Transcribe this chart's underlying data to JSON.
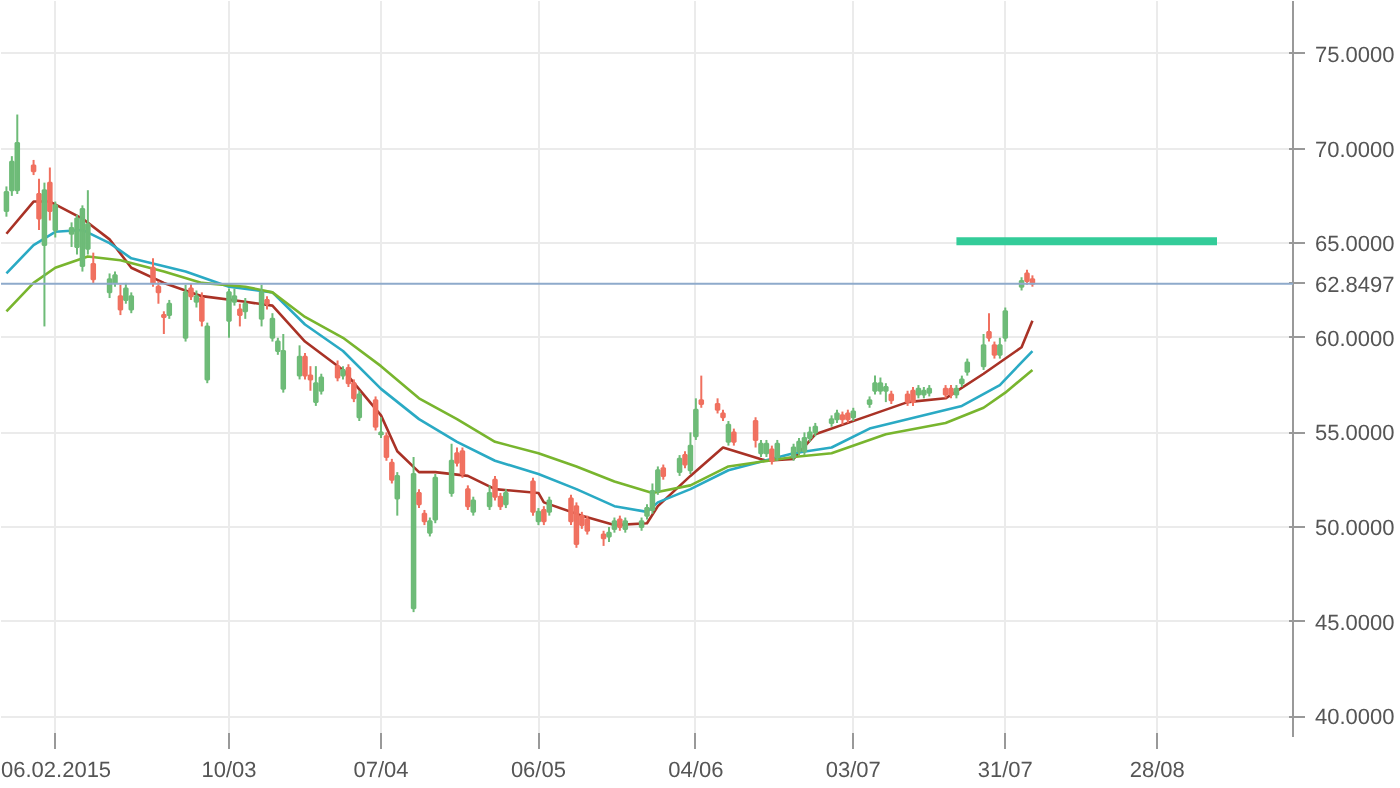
{
  "chart_data": {
    "type": "candlestick",
    "x": [
      "2015-01-28",
      "2015-01-29",
      "2015-01-30",
      "2015-02-02",
      "2015-02-03",
      "2015-02-04",
      "2015-02-05",
      "2015-02-06",
      "2015-02-09",
      "2015-02-10",
      "2015-02-11",
      "2015-02-12",
      "2015-02-13",
      "2015-02-16",
      "2015-02-17",
      "2015-02-18",
      "2015-02-19",
      "2015-02-20",
      "2015-02-24",
      "2015-02-25",
      "2015-02-26",
      "2015-02-27",
      "2015-03-02",
      "2015-03-03",
      "2015-03-04",
      "2015-03-05",
      "2015-03-06",
      "2015-03-10",
      "2015-03-11",
      "2015-03-12",
      "2015-03-13",
      "2015-03-16",
      "2015-03-17",
      "2015-03-18",
      "2015-03-19",
      "2015-03-20",
      "2015-03-23",
      "2015-03-24",
      "2015-03-25",
      "2015-03-26",
      "2015-03-27",
      "2015-03-30",
      "2015-03-31",
      "2015-04-01",
      "2015-04-02",
      "2015-04-03",
      "2015-04-06",
      "2015-04-07",
      "2015-04-08",
      "2015-04-09",
      "2015-04-10",
      "2015-04-13",
      "2015-04-14",
      "2015-04-15",
      "2015-04-16",
      "2015-04-17",
      "2015-04-20",
      "2015-04-21",
      "2015-04-22",
      "2015-04-23",
      "2015-04-24",
      "2015-04-27",
      "2015-04-28",
      "2015-04-29",
      "2015-04-30",
      "2015-05-05",
      "2015-05-06",
      "2015-05-07",
      "2015-05-08",
      "2015-05-12",
      "2015-05-13",
      "2015-05-14",
      "2015-05-15",
      "2015-05-18",
      "2015-05-19",
      "2015-05-20",
      "2015-05-21",
      "2015-05-22",
      "2015-05-25",
      "2015-05-26",
      "2015-05-27",
      "2015-05-28",
      "2015-05-29",
      "2015-06-01",
      "2015-06-02",
      "2015-06-03",
      "2015-06-04",
      "2015-06-05",
      "2015-06-08",
      "2015-06-09",
      "2015-06-10",
      "2015-06-11",
      "2015-06-15",
      "2015-06-16",
      "2015-06-17",
      "2015-06-18",
      "2015-06-19",
      "2015-06-22",
      "2015-06-23",
      "2015-06-24",
      "2015-06-25",
      "2015-06-26",
      "2015-06-29",
      "2015-06-30",
      "2015-07-01",
      "2015-07-02",
      "2015-07-03",
      "2015-07-06",
      "2015-07-07",
      "2015-07-08",
      "2015-07-09",
      "2015-07-10",
      "2015-07-13",
      "2015-07-14",
      "2015-07-15",
      "2015-07-16",
      "2015-07-17",
      "2015-07-20",
      "2015-07-21",
      "2015-07-22",
      "2015-07-23",
      "2015-07-24",
      "2015-07-27",
      "2015-07-28",
      "2015-07-29",
      "2015-07-30",
      "2015-07-31",
      "2015-08-03",
      "2015-08-04",
      "2015-08-05"
    ],
    "ohlc": [
      [
        66.7,
        68.0,
        66.4,
        67.7
      ],
      [
        67.8,
        69.6,
        67.5,
        69.3
      ],
      [
        67.8,
        71.8,
        67.6,
        70.3
      ],
      [
        69.1,
        69.4,
        68.6,
        68.8
      ],
      [
        67.6,
        68.4,
        65.7,
        66.3
      ],
      [
        64.9,
        68.2,
        60.6,
        67.8
      ],
      [
        68.2,
        69.0,
        66.2,
        66.7
      ],
      [
        65.7,
        67.2,
        65.3,
        67.0
      ],
      [
        65.5,
        66.1,
        64.8,
        65.8
      ],
      [
        64.8,
        66.5,
        64.4,
        66.3
      ],
      [
        63.8,
        67.0,
        63.5,
        66.8
      ],
      [
        64.7,
        67.8,
        64.4,
        66.0
      ],
      [
        63.9,
        64.5,
        62.9,
        63.1
      ],
      [
        62.4,
        63.4,
        62.1,
        63.1
      ],
      [
        62.9,
        63.5,
        62.7,
        63.3
      ],
      [
        62.2,
        62.8,
        61.2,
        61.5
      ],
      [
        62.0,
        62.9,
        61.8,
        62.6
      ],
      [
        61.5,
        62.4,
        61.3,
        62.2
      ],
      [
        63.7,
        64.2,
        62.7,
        62.9
      ],
      [
        62.7,
        63.0,
        61.8,
        62.4
      ],
      [
        61.2,
        61.4,
        60.2,
        61.1
      ],
      [
        61.2,
        62.0,
        61.0,
        61.8
      ],
      [
        60.0,
        62.8,
        59.8,
        62.4
      ],
      [
        62.6,
        62.9,
        62.0,
        62.2
      ],
      [
        61.9,
        62.5,
        61.6,
        62.2
      ],
      [
        62.1,
        62.4,
        60.6,
        60.9
      ],
      [
        57.8,
        60.8,
        57.6,
        60.6
      ],
      [
        60.9,
        62.6,
        60.0,
        62.4
      ],
      [
        61.9,
        62.6,
        61.7,
        62.2
      ],
      [
        61.5,
        61.8,
        60.6,
        61.2
      ],
      [
        61.4,
        62.1,
        61.0,
        61.8
      ],
      [
        61.0,
        62.8,
        60.6,
        62.4
      ],
      [
        62.0,
        62.2,
        61.5,
        61.8
      ],
      [
        60.0,
        61.3,
        59.8,
        61.0
      ],
      [
        59.3,
        60.0,
        59.1,
        59.8
      ],
      [
        57.3,
        60.2,
        57.1,
        59.3
      ],
      [
        58.0,
        59.6,
        57.8,
        59.0
      ],
      [
        59.0,
        59.2,
        57.8,
        58.0
      ],
      [
        58.0,
        58.5,
        57.2,
        57.8
      ],
      [
        56.6,
        58.5,
        56.4,
        57.6
      ],
      [
        57.2,
        58.1,
        57.0,
        57.9
      ],
      [
        58.5,
        58.8,
        57.7,
        57.9
      ],
      [
        58.0,
        58.5,
        57.8,
        58.3
      ],
      [
        58.4,
        58.6,
        57.4,
        57.6
      ],
      [
        57.6,
        57.8,
        56.6,
        56.8
      ],
      [
        55.8,
        57.2,
        55.6,
        57.0
      ],
      [
        56.7,
        56.9,
        55.1,
        55.3
      ],
      [
        54.9,
        55.8,
        54.7,
        55.0
      ],
      [
        54.8,
        55.0,
        53.5,
        53.7
      ],
      [
        53.4,
        53.6,
        52.3,
        52.5
      ],
      [
        51.5,
        52.9,
        50.6,
        52.7
      ],
      [
        45.7,
        53.7,
        45.5,
        52.8
      ],
      [
        51.8,
        52.0,
        51.0,
        51.2
      ],
      [
        50.7,
        50.9,
        50.1,
        50.3
      ],
      [
        49.7,
        50.5,
        49.5,
        50.3
      ],
      [
        50.4,
        52.8,
        50.2,
        52.6
      ],
      [
        51.8,
        54.4,
        51.6,
        53.5
      ],
      [
        53.9,
        54.2,
        53.2,
        53.4
      ],
      [
        54.0,
        54.2,
        52.6,
        52.8
      ],
      [
        52.0,
        52.2,
        50.9,
        51.1
      ],
      [
        50.8,
        51.6,
        50.6,
        51.4
      ],
      [
        51.1,
        52.2,
        50.9,
        51.8
      ],
      [
        52.5,
        52.7,
        51.4,
        51.6
      ],
      [
        51.6,
        51.8,
        50.9,
        51.1
      ],
      [
        51.2,
        52.0,
        51.0,
        51.8
      ],
      [
        52.4,
        52.6,
        50.6,
        50.8
      ],
      [
        50.3,
        51.0,
        50.1,
        50.8
      ],
      [
        50.9,
        51.1,
        50.1,
        50.3
      ],
      [
        50.8,
        51.6,
        50.6,
        51.4
      ],
      [
        51.5,
        51.7,
        50.1,
        50.3
      ],
      [
        51.1,
        51.3,
        48.9,
        49.1
      ],
      [
        50.6,
        50.8,
        49.9,
        50.1
      ],
      [
        50.4,
        50.6,
        49.6,
        49.8
      ],
      [
        49.6,
        49.8,
        49.0,
        49.4
      ],
      [
        49.5,
        50.0,
        49.2,
        49.7
      ],
      [
        49.9,
        50.5,
        49.7,
        50.3
      ],
      [
        50.4,
        50.6,
        49.8,
        50.0
      ],
      [
        49.9,
        50.5,
        49.7,
        50.3
      ],
      [
        50.0,
        50.5,
        49.8,
        50.3
      ],
      [
        50.6,
        51.2,
        50.4,
        51.0
      ],
      [
        50.9,
        52.3,
        50.7,
        51.9
      ],
      [
        51.9,
        53.2,
        51.7,
        53.0
      ],
      [
        53.1,
        53.3,
        52.5,
        52.7
      ],
      [
        52.9,
        53.8,
        52.7,
        53.6
      ],
      [
        53.8,
        54.0,
        53.1,
        53.3
      ],
      [
        53.0,
        55.0,
        52.8,
        54.3
      ],
      [
        54.8,
        56.8,
        54.6,
        56.2
      ],
      [
        56.7,
        58.0,
        56.3,
        56.5
      ],
      [
        56.5,
        56.8,
        56.0,
        56.2
      ],
      [
        56.0,
        56.2,
        55.6,
        55.8
      ],
      [
        54.5,
        55.6,
        54.3,
        55.4
      ],
      [
        55.0,
        55.2,
        54.3,
        54.5
      ],
      [
        55.6,
        55.8,
        54.2,
        54.6
      ],
      [
        53.9,
        54.6,
        53.7,
        54.4
      ],
      [
        53.9,
        54.6,
        53.7,
        54.4
      ],
      [
        54.1,
        54.3,
        53.3,
        53.5
      ],
      [
        53.7,
        54.6,
        53.5,
        54.4
      ],
      [
        53.7,
        54.4,
        53.5,
        54.2
      ],
      [
        54.0,
        54.7,
        53.8,
        54.5
      ],
      [
        54.0,
        55.0,
        53.8,
        54.7
      ],
      [
        54.7,
        55.3,
        54.5,
        55.0
      ],
      [
        55.0,
        55.5,
        54.8,
        55.3
      ],
      [
        55.5,
        55.9,
        55.3,
        55.7
      ],
      [
        55.7,
        56.2,
        55.5,
        56.0
      ],
      [
        55.9,
        56.1,
        55.4,
        55.7
      ],
      [
        56.0,
        56.2,
        55.5,
        55.7
      ],
      [
        55.8,
        56.3,
        55.6,
        56.1
      ],
      [
        56.5,
        56.9,
        56.3,
        56.7
      ],
      [
        57.2,
        58.0,
        57.0,
        57.6
      ],
      [
        57.2,
        57.9,
        57.0,
        57.6
      ],
      [
        57.2,
        57.6,
        56.6,
        57.4
      ],
      [
        57.0,
        57.2,
        56.5,
        56.7
      ],
      [
        57.0,
        57.2,
        56.4,
        56.6
      ],
      [
        57.2,
        57.4,
        56.4,
        56.6
      ],
      [
        57.0,
        57.5,
        56.8,
        57.3
      ],
      [
        57.0,
        57.4,
        56.8,
        57.2
      ],
      [
        57.1,
        57.5,
        56.9,
        57.3
      ],
      [
        57.3,
        57.5,
        56.8,
        57.0
      ],
      [
        57.3,
        57.5,
        56.8,
        57.0
      ],
      [
        57.0,
        57.5,
        56.8,
        57.3
      ],
      [
        57.6,
        58.0,
        57.4,
        57.8
      ],
      [
        58.2,
        58.9,
        58.0,
        58.7
      ],
      [
        58.5,
        60.2,
        58.3,
        59.6
      ],
      [
        60.3,
        61.3,
        59.8,
        60.0
      ],
      [
        59.6,
        59.8,
        58.9,
        59.1
      ],
      [
        59.1,
        60.0,
        58.9,
        59.6
      ],
      [
        60.0,
        61.6,
        59.8,
        61.4
      ],
      [
        62.7,
        63.2,
        62.5,
        63.0
      ],
      [
        63.4,
        63.6,
        62.8,
        63.0
      ],
      [
        63.1,
        63.3,
        62.7,
        62.85
      ]
    ],
    "colors": [
      "#6dbb77",
      "#6dbb77",
      "#6dbb77",
      "#f0705f",
      "#f0705f",
      "#6dbb77",
      "#f0705f",
      "#6dbb77",
      "#6dbb77",
      "#6dbb77",
      "#6dbb77",
      "#6dbb77",
      "#f0705f",
      "#6dbb77",
      "#6dbb77",
      "#f0705f",
      "#6dbb77",
      "#6dbb77",
      "#f0705f",
      "#f0705f",
      "#f0705f",
      "#6dbb77",
      "#6dbb77",
      "#f0705f",
      "#6dbb77",
      "#f0705f",
      "#6dbb77",
      "#6dbb77",
      "#6dbb77",
      "#f0705f",
      "#6dbb77",
      "#6dbb77",
      "#f0705f",
      "#6dbb77",
      "#6dbb77",
      "#6dbb77",
      "#6dbb77",
      "#f0705f",
      "#f0705f",
      "#6dbb77",
      "#6dbb77",
      "#f0705f",
      "#6dbb77",
      "#f0705f",
      "#f0705f",
      "#6dbb77",
      "#f0705f",
      "#6dbb77",
      "#f0705f",
      "#f0705f",
      "#6dbb77",
      "#6dbb77",
      "#f0705f",
      "#f0705f",
      "#6dbb77",
      "#6dbb77",
      "#6dbb77",
      "#f0705f",
      "#f0705f",
      "#f0705f",
      "#6dbb77",
      "#6dbb77",
      "#f0705f",
      "#f0705f",
      "#6dbb77",
      "#f0705f",
      "#6dbb77",
      "#f0705f",
      "#6dbb77",
      "#f0705f",
      "#f0705f",
      "#f0705f",
      "#f0705f",
      "#f0705f",
      "#6dbb77",
      "#6dbb77",
      "#f0705f",
      "#6dbb77",
      "#6dbb77",
      "#6dbb77",
      "#6dbb77",
      "#6dbb77",
      "#f0705f",
      "#6dbb77",
      "#f0705f",
      "#6dbb77",
      "#6dbb77",
      "#f0705f",
      "#f0705f",
      "#f0705f",
      "#6dbb77",
      "#f0705f",
      "#f0705f",
      "#6dbb77",
      "#6dbb77",
      "#f0705f",
      "#6dbb77",
      "#6dbb77",
      "#6dbb77",
      "#6dbb77",
      "#6dbb77",
      "#6dbb77",
      "#6dbb77",
      "#6dbb77",
      "#f0705f",
      "#f0705f",
      "#6dbb77",
      "#6dbb77",
      "#6dbb77",
      "#6dbb77",
      "#6dbb77",
      "#f0705f",
      "#f0705f",
      "#f0705f",
      "#6dbb77",
      "#6dbb77",
      "#6dbb77",
      "#f0705f",
      "#f0705f",
      "#6dbb77",
      "#6dbb77",
      "#6dbb77",
      "#6dbb77",
      "#f0705f",
      "#f0705f",
      "#6dbb77",
      "#6dbb77",
      "#6dbb77",
      "#f0705f",
      "#f0705f"
    ],
    "series": [
      {
        "type": "line",
        "color": "#a93226",
        "x": [
          "2015-01-28",
          "2015-02-02",
          "2015-02-05",
          "2015-02-11",
          "2015-02-16",
          "2015-02-20",
          "2015-02-26",
          "2015-03-05",
          "2015-03-13",
          "2015-03-18",
          "2015-03-24",
          "2015-03-31",
          "2015-04-07",
          "2015-04-10",
          "2015-04-14",
          "2015-04-17",
          "2015-04-23",
          "2015-04-28",
          "2015-05-06",
          "2015-05-07",
          "2015-05-14",
          "2015-05-20",
          "2015-05-26",
          "2015-05-28",
          "2015-06-03",
          "2015-06-09",
          "2015-06-17",
          "2015-06-22",
          "2015-06-26",
          "2015-07-06",
          "2015-07-13",
          "2015-07-20",
          "2015-07-27",
          "2015-08-03",
          "2015-08-05"
        ],
        "values": [
          65.5,
          67.2,
          67.2,
          66.3,
          65.2,
          63.7,
          62.9,
          62.2,
          61.9,
          61.7,
          59.8,
          58.3,
          55.9,
          54.0,
          52.9,
          52.9,
          52.7,
          52.0,
          51.8,
          51.3,
          50.6,
          50.1,
          50.2,
          51.1,
          52.7,
          54.2,
          53.5,
          53.6,
          54.9,
          55.9,
          56.6,
          56.8,
          58.1,
          59.5,
          60.9
        ]
      },
      {
        "type": "line",
        "color": "#2aaac4",
        "x": [
          "2015-01-28",
          "2015-02-02",
          "2015-02-06",
          "2015-02-11",
          "2015-02-16",
          "2015-02-20",
          "2015-03-02",
          "2015-03-10",
          "2015-03-18",
          "2015-03-24",
          "2015-03-31",
          "2015-04-07",
          "2015-04-14",
          "2015-04-21",
          "2015-04-28",
          "2015-05-06",
          "2015-05-13",
          "2015-05-20",
          "2015-05-26",
          "2015-05-28",
          "2015-06-03",
          "2015-06-10",
          "2015-06-22",
          "2015-06-29",
          "2015-07-06",
          "2015-07-16",
          "2015-07-23",
          "2015-07-30",
          "2015-08-05"
        ],
        "values": [
          63.4,
          64.9,
          65.6,
          65.7,
          65.0,
          64.2,
          63.5,
          62.7,
          62.4,
          60.7,
          59.3,
          57.3,
          55.7,
          54.5,
          53.5,
          52.8,
          52.0,
          51.1,
          50.8,
          51.3,
          52.0,
          53.0,
          53.9,
          54.2,
          55.2,
          55.9,
          56.4,
          57.5,
          59.3
        ]
      },
      {
        "type": "line",
        "color": "#78b52e",
        "x": [
          "2015-01-28",
          "2015-02-02",
          "2015-02-06",
          "2015-02-12",
          "2015-02-18",
          "2015-02-26",
          "2015-03-05",
          "2015-03-13",
          "2015-03-18",
          "2015-03-24",
          "2015-03-31",
          "2015-04-07",
          "2015-04-14",
          "2015-04-21",
          "2015-04-28",
          "2015-05-06",
          "2015-05-13",
          "2015-05-20",
          "2015-05-27",
          "2015-06-03",
          "2015-06-10",
          "2015-06-22",
          "2015-06-29",
          "2015-07-09",
          "2015-07-20",
          "2015-07-27",
          "2015-07-31",
          "2015-08-05"
        ],
        "values": [
          61.4,
          62.9,
          63.7,
          64.3,
          64.1,
          63.5,
          62.9,
          62.7,
          62.4,
          61.1,
          60.0,
          58.5,
          56.8,
          55.7,
          54.5,
          53.9,
          53.2,
          52.4,
          51.8,
          52.2,
          53.2,
          53.7,
          53.9,
          54.9,
          55.5,
          56.3,
          57.1,
          58.3
        ]
      },
      {
        "type": "line",
        "color": "#33cc99",
        "x": [
          "2015-07-22",
          "2015-09-08"
        ],
        "values": [
          65.1,
          65.1
        ]
      }
    ],
    "xlim": [
      "2015-01-27",
      "2015-09-22"
    ],
    "xticks": [
      {
        "value": "2015-02-06",
        "label": "06.02.2015"
      },
      {
        "value": "2015-03-10",
        "label": "10/03"
      },
      {
        "value": "2015-04-07",
        "label": "07/04"
      },
      {
        "value": "2015-05-06",
        "label": "06/05"
      },
      {
        "value": "2015-06-04",
        "label": "04/06"
      },
      {
        "value": "2015-07-03",
        "label": "03/07"
      },
      {
        "value": "2015-07-31",
        "label": "31/07"
      },
      {
        "value": "2015-08-28",
        "label": "28/08"
      }
    ],
    "ylim": [
      38.9,
      77.8
    ],
    "yticks": [
      {
        "value": 40,
        "label": "40.0000"
      },
      {
        "value": 45,
        "label": "45.0000"
      },
      {
        "value": 50,
        "label": "50.0000"
      },
      {
        "value": 55,
        "label": "55.0000"
      },
      {
        "value": 60,
        "label": "60.0000"
      },
      {
        "value": 65,
        "label": "65.0000"
      },
      {
        "value": 70,
        "label": "70.0000"
      },
      {
        "value": 75,
        "label": "75.0000"
      }
    ],
    "grid": true,
    "ref_lines": [
      {
        "axis": "y",
        "value": 62.8497,
        "label": "62.8497",
        "color": "#8eaacb"
      }
    ]
  }
}
